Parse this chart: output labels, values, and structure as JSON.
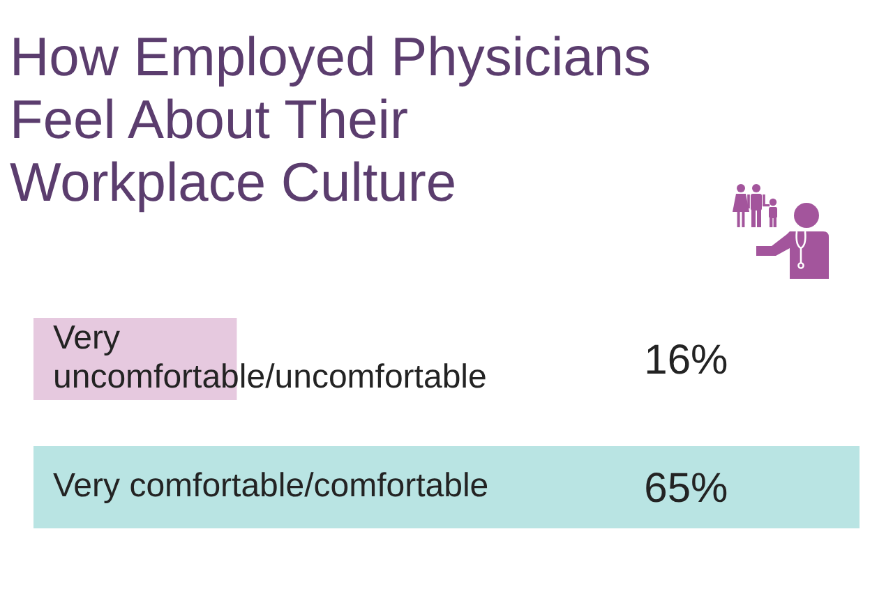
{
  "chart_data": {
    "type": "bar",
    "orientation": "horizontal",
    "title": "How Employed Physicians Feel About Their Workplace Culture",
    "categories": [
      "Very uncomfortable/uncomfortable",
      "Very comfortable/comfortable"
    ],
    "values": [
      16,
      65
    ],
    "colors": [
      "#e6c9df",
      "#b9e4e3"
    ],
    "value_labels": [
      "16%",
      "65%"
    ]
  }
}
